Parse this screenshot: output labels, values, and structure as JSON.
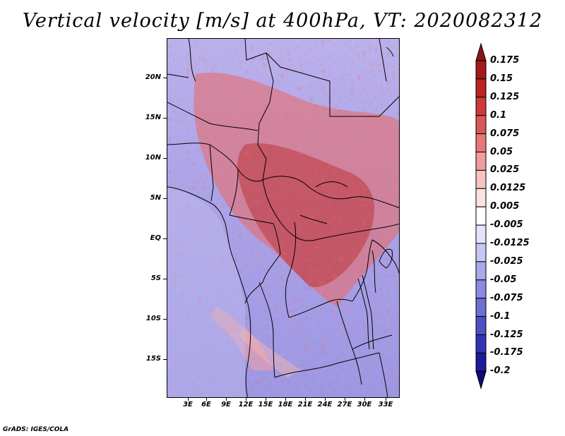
{
  "title": "Vertical velocity [m/s] at 400hPa, VT: 2020082312",
  "credit": "GrADS: IGES/COLA",
  "lat_labels": [
    "20N",
    "15N",
    "10N",
    "5N",
    "EQ",
    "5S",
    "10S",
    "15S"
  ],
  "lon_labels": [
    "3E",
    "6E",
    "9E",
    "12E",
    "15E",
    "18E",
    "21E",
    "24E",
    "27E",
    "30E",
    "33E"
  ],
  "colorbar": {
    "labels": [
      "0.175",
      "0.15",
      "0.125",
      "0.1",
      "0.075",
      "0.05",
      "0.025",
      "0.0125",
      "0.005",
      "-0.005",
      "-0.0125",
      "-0.025",
      "-0.05",
      "-0.075",
      "-0.1",
      "-0.125",
      "-0.175",
      "-0.2"
    ],
    "colors": [
      "#8b1414",
      "#a31a1a",
      "#b92525",
      "#cc3b3b",
      "#db5757",
      "#e67878",
      "#f09c9c",
      "#f6c2c2",
      "#fbe1e1",
      "#ffffff",
      "#e3e3fb",
      "#c7c7f4",
      "#a9a9ec",
      "#8b8be2",
      "#6e6ed6",
      "#5050c6",
      "#3434b2",
      "#1c1c98",
      "#120a78"
    ]
  }
}
